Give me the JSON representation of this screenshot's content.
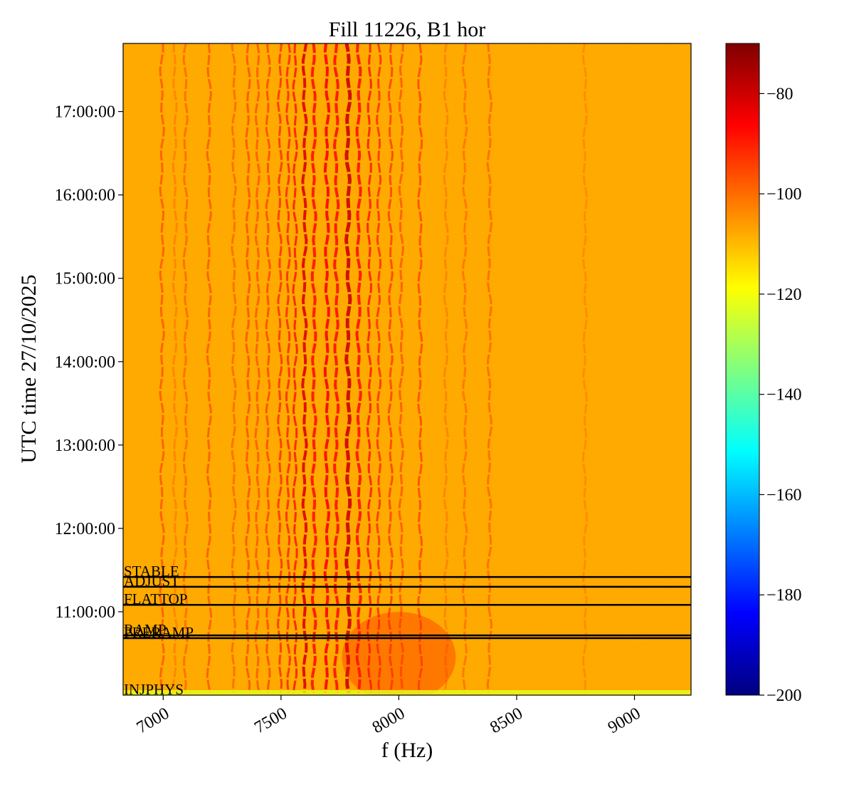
{
  "chart_data": {
    "type": "heatmap",
    "title": "Fill 11226, B1 hor",
    "xlabel": "f (Hz)",
    "ylabel": "UTC time 27/10/2025",
    "xlim": [
      6830,
      9240
    ],
    "x_ticks": [
      {
        "value": 7000,
        "label": "7000"
      },
      {
        "value": 7500,
        "label": "7500"
      },
      {
        "value": 8000,
        "label": "8000"
      },
      {
        "value": 8500,
        "label": "8500"
      },
      {
        "value": 9000,
        "label": "9000"
      }
    ],
    "ylim": [
      "10:00:00",
      "17:49:00"
    ],
    "y_ticks": [
      {
        "value": "11:00:00",
        "label": "11:00:00"
      },
      {
        "value": "12:00:00",
        "label": "12:00:00"
      },
      {
        "value": "13:00:00",
        "label": "13:00:00"
      },
      {
        "value": "14:00:00",
        "label": "14:00:00"
      },
      {
        "value": "15:00:00",
        "label": "15:00:00"
      },
      {
        "value": "16:00:00",
        "label": "16:00:00"
      },
      {
        "value": "17:00:00",
        "label": "17:00:00"
      }
    ],
    "colorbar": {
      "colormap": "jet",
      "range": [
        -200,
        -70
      ],
      "ticks": [
        {
          "value": -80,
          "label": "−80"
        },
        {
          "value": -100,
          "label": "−100"
        },
        {
          "value": -120,
          "label": "−120"
        },
        {
          "value": -140,
          "label": "−140"
        },
        {
          "value": -160,
          "label": "−160"
        },
        {
          "value": -180,
          "label": "−180"
        },
        {
          "value": -200,
          "label": "−200"
        }
      ]
    },
    "background_level": -108,
    "lines": [
      {
        "f": 6995,
        "level": -98
      },
      {
        "f": 7050,
        "level": -103
      },
      {
        "f": 7095,
        "level": -100
      },
      {
        "f": 7195,
        "level": -98
      },
      {
        "f": 7300,
        "level": -100
      },
      {
        "f": 7360,
        "level": -97
      },
      {
        "f": 7400,
        "level": -98
      },
      {
        "f": 7445,
        "level": -96
      },
      {
        "f": 7495,
        "level": -93
      },
      {
        "f": 7530,
        "level": -92
      },
      {
        "f": 7560,
        "level": -90
      },
      {
        "f": 7600,
        "level": -82
      },
      {
        "f": 7640,
        "level": -88
      },
      {
        "f": 7695,
        "level": -86
      },
      {
        "f": 7735,
        "level": -88
      },
      {
        "f": 7785,
        "level": -80
      },
      {
        "f": 7830,
        "level": -88
      },
      {
        "f": 7875,
        "level": -90
      },
      {
        "f": 7915,
        "level": -93
      },
      {
        "f": 7965,
        "level": -95
      },
      {
        "f": 8010,
        "level": -98
      },
      {
        "f": 8090,
        "level": -96
      },
      {
        "f": 8200,
        "level": -103
      },
      {
        "f": 8280,
        "level": -101
      },
      {
        "f": 8385,
        "level": -100
      },
      {
        "f": 8790,
        "level": -104
      }
    ],
    "annotations": [
      {
        "text": "STABLE",
        "time": "11:25:00"
      },
      {
        "text": "ADJUST",
        "time": "11:18:00"
      },
      {
        "text": "FLATTOP",
        "time": "11:05:00"
      },
      {
        "text": "RAMP",
        "time": "10:43:00"
      },
      {
        "text": "PRERAMP",
        "time": "10:41:00"
      },
      {
        "text": "INJPHYS",
        "time": "10:00:00"
      }
    ]
  }
}
